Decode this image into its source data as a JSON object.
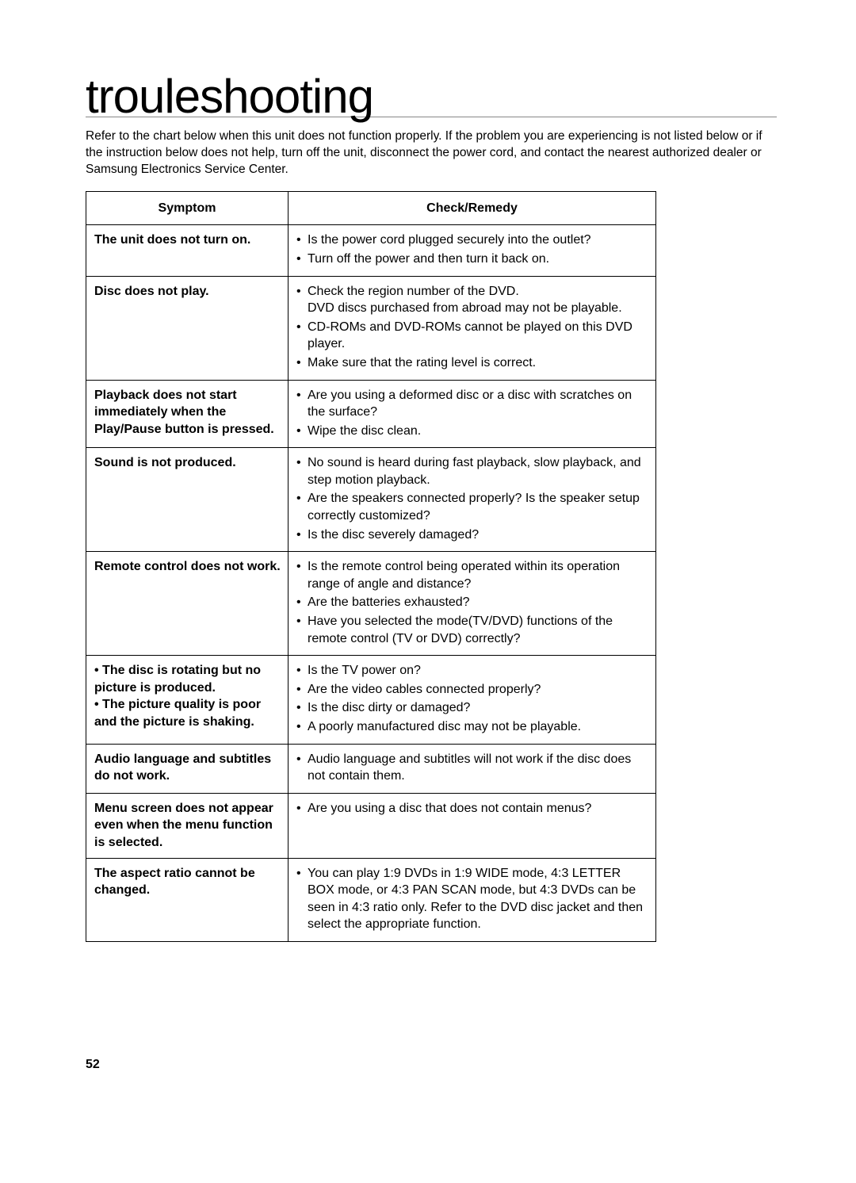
{
  "page": {
    "title": "trouleshooting",
    "intro": "Refer to the chart below when this unit does not function properly. If the problem you are experiencing is not listed below or if the instruction below does not help, turn off the unit, disconnect the power cord, and contact the nearest authorized dealer or Samsung Electronics Service Center.",
    "page_number": "52"
  },
  "table": {
    "headers": {
      "symptom": "Symptom",
      "check": "Check/Remedy"
    },
    "rows": [
      {
        "symptom": "The unit does not turn on.",
        "checks": [
          "Is the power cord plugged securely into the outlet?",
          "Turn off the power and then turn it back on."
        ]
      },
      {
        "symptom": "Disc does not play.",
        "checks": [
          "Check the region number of the DVD.\nDVD discs purchased from abroad may not be playable.",
          "CD-ROMs and DVD-ROMs cannot be played on this DVD player.",
          "Make sure that the rating level is correct."
        ]
      },
      {
        "symptom": "Playback does not start immediately when the Play/Pause button is pressed.",
        "checks": [
          "Are you using a deformed disc or a disc with scratches on the surface?",
          "Wipe the disc clean."
        ]
      },
      {
        "symptom": "Sound is not produced.",
        "checks": [
          "No sound is heard during fast playback, slow playback, and step motion playback.",
          "Are the speakers connected properly? Is the speaker setup correctly customized?",
          "Is the disc severely damaged?"
        ]
      },
      {
        "symptom": "Remote control does not work.",
        "checks": [
          "Is the remote control being operated within its operation range of angle and distance?",
          "Are the batteries exhausted?",
          "Have you selected the mode(TV/DVD) functions of the remote control (TV or DVD) correctly?"
        ]
      },
      {
        "symptom": "• The disc is rotating but no picture is produced.\n• The picture quality is poor and the picture is shaking.",
        "checks": [
          "Is the TV power on?",
          "Are the video cables connected properly?",
          "Is the disc dirty or damaged?",
          "A poorly manufactured disc may not be playable."
        ]
      },
      {
        "symptom": "Audio language and subtitles do not work.",
        "checks": [
          "Audio language and subtitles will not work if the disc does not contain them."
        ]
      },
      {
        "symptom": "Menu screen does not appear even when the menu function is selected.",
        "checks": [
          "Are you using a disc that does not contain menus?"
        ]
      },
      {
        "symptom": "The aspect ratio cannot be changed.",
        "checks": [
          "You can play 1:9 DVDs in 1:9 WIDE mode, 4:3 LETTER BOX mode, or 4:3 PAN SCAN mode, but 4:3 DVDs can be seen in 4:3 ratio only. Refer to the DVD disc jacket and then select the appropriate function."
        ]
      }
    ]
  }
}
